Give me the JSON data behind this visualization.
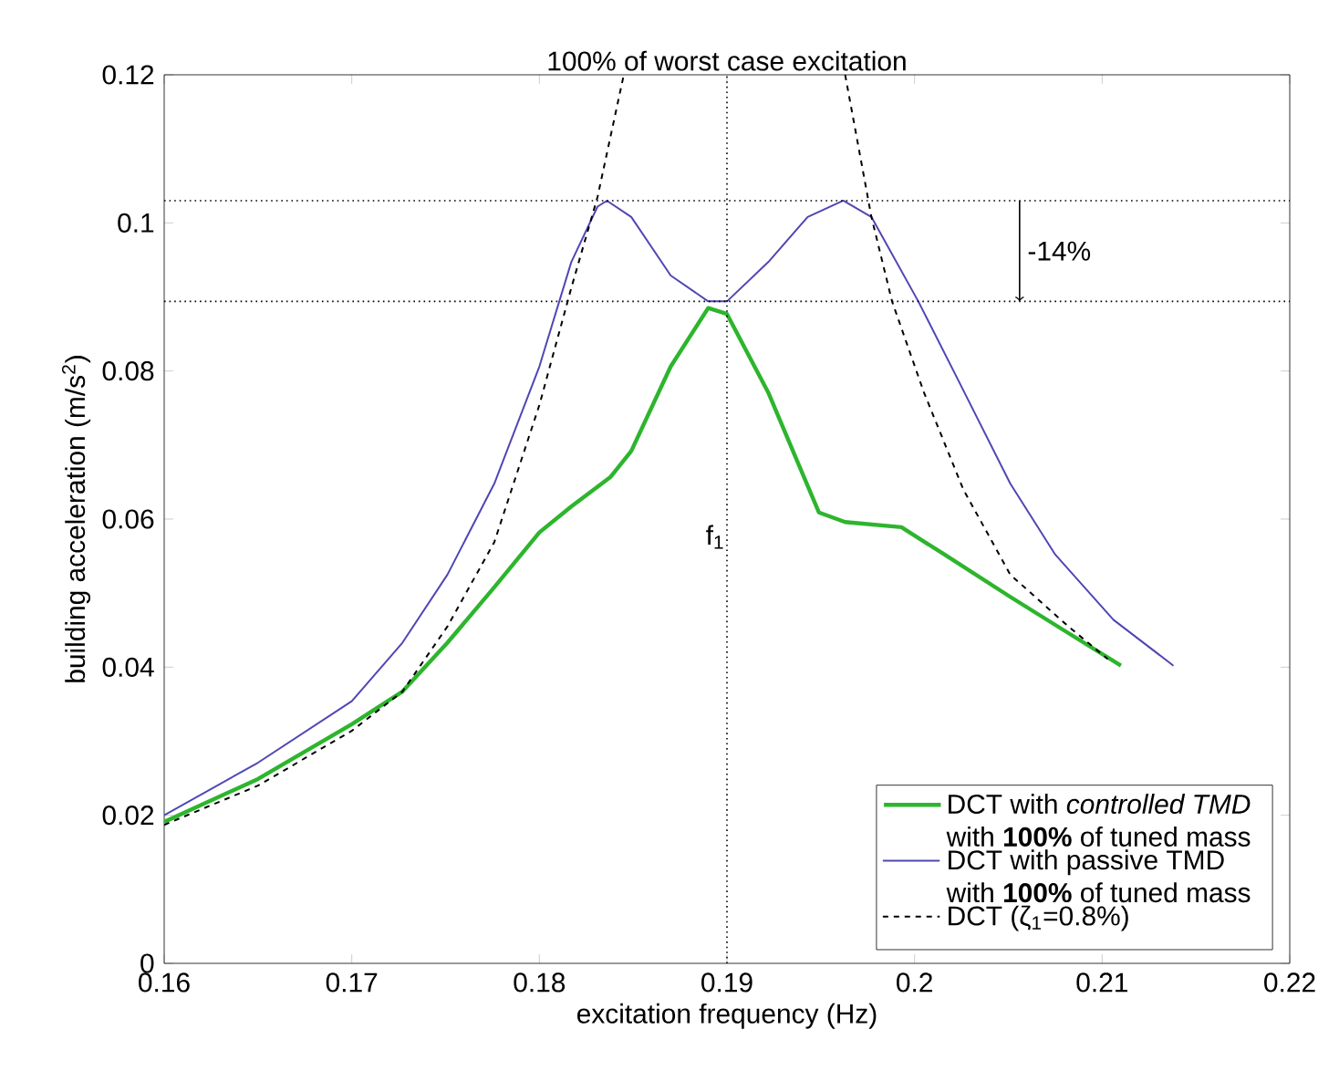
{
  "chart_data": {
    "type": "line",
    "xlabel": "excitation frequency (Hz)",
    "ylabel": "building acceleration (m/s$^{2}$)",
    "xlim": [
      0.16,
      0.22
    ],
    "xticks": [
      0.16,
      0.17,
      0.18,
      0.19,
      0.2,
      0.21,
      0.22
    ],
    "ylim": [
      0,
      0.12
    ],
    "yticks": [
      0,
      0.02,
      0.04,
      0.06,
      0.08,
      0.1,
      0.12
    ],
    "legend": "bottom right",
    "grid": false,
    "series": [
      {
        "name": "DCT with *controlled TMD* with **100%** of tuned mass",
        "color": "#2db52d",
        "line_style": "solid",
        "x": [
          0.16,
          0.165,
          0.17,
          0.1727,
          0.1751,
          0.1776,
          0.18,
          0.1817,
          0.1838,
          0.1849,
          0.187,
          0.189,
          0.19,
          0.1922,
          0.1949,
          0.1963,
          0.1993,
          0.2016,
          0.2051,
          0.2082,
          0.211
        ],
        "values": [
          0.0191,
          0.0249,
          0.0323,
          0.0367,
          0.0433,
          0.0508,
          0.0582,
          0.0617,
          0.0657,
          0.0692,
          0.0806,
          0.0885,
          0.0877,
          0.0771,
          0.0609,
          0.0596,
          0.0589,
          0.0552,
          0.0495,
          0.0446,
          0.0402
        ]
      },
      {
        "name": "DCT with passive TMD with **100%** of tuned mass",
        "color": "#5046b4",
        "line_style": "solid",
        "x": [
          0.16,
          0.165,
          0.17,
          0.1727,
          0.1751,
          0.1776,
          0.18,
          0.1817,
          0.1831,
          0.1836,
          0.1849,
          0.187,
          0.189,
          0.19,
          0.1922,
          0.1943,
          0.1962,
          0.1977,
          0.2002,
          0.2023,
          0.2051,
          0.2075,
          0.2106,
          0.2138
        ],
        "values": [
          0.02,
          0.0271,
          0.0354,
          0.0433,
          0.0525,
          0.0648,
          0.0806,
          0.0947,
          0.1022,
          0.103,
          0.1008,
          0.0929,
          0.0894,
          0.0894,
          0.0947,
          0.1008,
          0.103,
          0.1008,
          0.0894,
          0.0789,
          0.0648,
          0.0552,
          0.0464,
          0.0402
        ]
      },
      {
        "name": "DCT (ζ$_{1}$=0.8%)",
        "color": "#000000",
        "line_style": "dashed",
        "x": [
          0.16,
          0.165,
          0.17,
          0.1727,
          0.1751,
          0.1776,
          0.18,
          0.1817,
          0.1831,
          0.1845,
          0.19,
          0.1963,
          0.1977,
          0.1988,
          0.2005,
          0.2026,
          0.2051,
          0.2082,
          0.2103
        ],
        "values": [
          0.0187,
          0.024,
          0.0314,
          0.0367,
          0.0455,
          0.0569,
          0.0754,
          0.0912,
          0.1035,
          0.12,
          null,
          0.12,
          0.1008,
          0.0894,
          0.0771,
          0.064,
          0.0525,
          0.0455,
          0.0411
        ]
      }
    ],
    "ref_lines": [
      {
        "axis": "x",
        "value": 0.19,
        "label": "100% of worst case excitation",
        "color": "#000000",
        "line_style": "dotted"
      },
      {
        "axis": "y",
        "value": 0.103,
        "color": "#000000",
        "line_style": "dotted"
      },
      {
        "axis": "y",
        "value": 0.0894,
        "color": "#000000",
        "line_style": "dotted"
      }
    ],
    "annotations": [
      "f$_{1}$",
      "-14%"
    ]
  }
}
